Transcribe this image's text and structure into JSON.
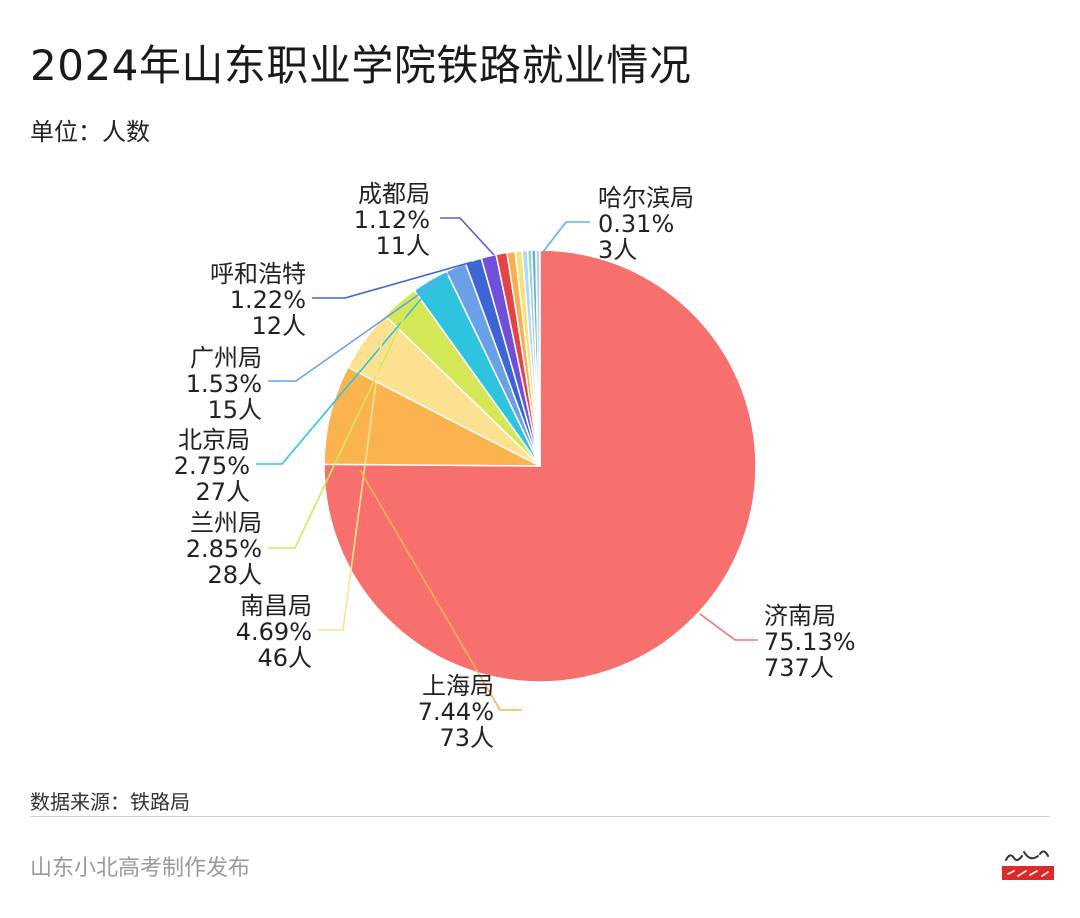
{
  "header": {
    "title": "2024年山东职业学院铁路就业情况",
    "unit": "单位：人数"
  },
  "footer": {
    "source": "数据来源：铁路局",
    "publisher": "山东小北高考制作发布"
  },
  "chart_data": {
    "type": "pie",
    "title": "2024年山东职业学院铁路就业情况",
    "unit": "单位：人数",
    "slices": [
      {
        "name": "济南局",
        "percent": "75.13%",
        "count": "737人",
        "value": 737,
        "color": "#F8706E"
      },
      {
        "name": "上海局",
        "percent": "7.44%",
        "count": "73人",
        "value": 73,
        "color": "#FBB350"
      },
      {
        "name": "南昌局",
        "percent": "4.69%",
        "count": "46人",
        "value": 46,
        "color": "#FCE290"
      },
      {
        "name": "兰州局",
        "percent": "2.85%",
        "count": "28人",
        "value": 28,
        "color": "#D4E857"
      },
      {
        "name": "北京局",
        "percent": "2.75%",
        "count": "27人",
        "value": 27,
        "color": "#2EC3DE"
      },
      {
        "name": "广州局",
        "percent": "1.53%",
        "count": "15人",
        "value": 15,
        "color": "#6AA0E6"
      },
      {
        "name": "呼和浩特",
        "percent": "1.22%",
        "count": "12人",
        "value": 12,
        "color": "#3C66D6"
      },
      {
        "name": "成都局",
        "percent": "1.12%",
        "count": "11人",
        "value": 11,
        "color": "#7050DA"
      },
      {
        "name": "",
        "percent": "",
        "count": "",
        "value": 8,
        "color": "#E24545"
      },
      {
        "name": "",
        "percent": "",
        "count": "",
        "value": 6,
        "color": "#F7AE55"
      },
      {
        "name": "",
        "percent": "",
        "count": "",
        "value": 5,
        "color": "#F6E27A"
      },
      {
        "name": "",
        "percent": "",
        "count": "",
        "value": 4,
        "color": "#B4D7F6"
      },
      {
        "name": "",
        "percent": "",
        "count": "",
        "value": 3,
        "color": "#94D6C2"
      },
      {
        "name": "哈尔滨局",
        "percent": "0.31%",
        "count": "3人",
        "value": 3,
        "color": "#5AB4E8"
      },
      {
        "name": "",
        "percent": "",
        "count": "",
        "value": 3,
        "color": "#C9CCE0"
      }
    ],
    "start": "top",
    "direction": "clockwise",
    "legend": "none"
  }
}
